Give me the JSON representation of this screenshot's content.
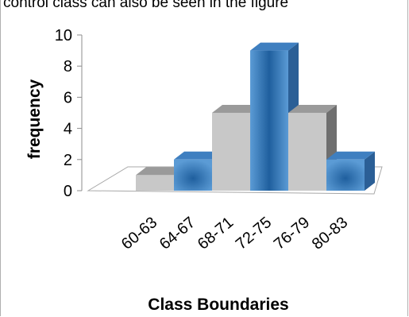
{
  "caption": "control class can also be seen in the figure",
  "chart_data": {
    "type": "bar",
    "style": "3d-column",
    "categories": [
      "60-63",
      "64-67",
      "68-71",
      "72-75",
      "76-79",
      "80-83"
    ],
    "values": [
      1,
      2,
      5,
      9,
      5,
      2
    ],
    "xlabel": "Class Boundaries",
    "ylabel": "frequency",
    "ylim": [
      0,
      10
    ],
    "yticks": [
      0,
      2,
      4,
      6,
      8,
      10
    ],
    "grid": false,
    "legend": "none",
    "colors": {
      "gray_front": "#c8c8c8",
      "gray_top": "#9a9a9a",
      "gray_side": "#6f6f6f",
      "blue_edge": "#5b9bd5",
      "blue_center": "#1f5f9e",
      "blue_top": "#3f7fc0",
      "blue_side": "#2b5f96"
    }
  }
}
